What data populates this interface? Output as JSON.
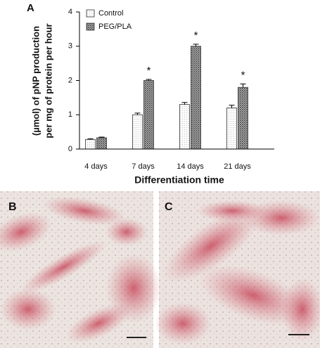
{
  "panel_labels": [
    "A",
    "B",
    "C"
  ],
  "chart_data": {
    "type": "bar",
    "y_label": [
      "(µmol) of pNP production",
      "per mg of protein per hour"
    ],
    "x_label": "Differentiation time",
    "categories": [
      "4 days",
      "7 days",
      "14 days",
      "21 days"
    ],
    "series": [
      {
        "name": "Control",
        "color": "#cfcfcf",
        "values": [
          0.28,
          1.0,
          1.3,
          1.2
        ],
        "errors": [
          0.02,
          0.05,
          0.06,
          0.08
        ],
        "significance": [
          null,
          null,
          null,
          null
        ]
      },
      {
        "name": "PEG/PLA",
        "color": "#555555",
        "values": [
          0.33,
          2.0,
          3.0,
          1.8
        ],
        "errors": [
          0.02,
          0.03,
          0.06,
          0.1
        ],
        "significance": [
          null,
          "*",
          "*",
          "*"
        ]
      }
    ],
    "ylim": [
      0,
      4
    ],
    "yticks": [
      0,
      1,
      2,
      3,
      4
    ],
    "grid": false,
    "legend": "upper left"
  }
}
